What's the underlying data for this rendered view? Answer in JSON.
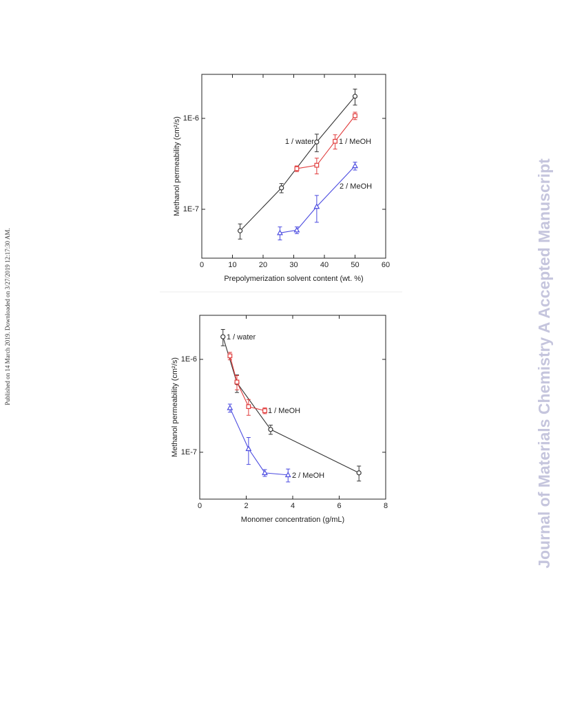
{
  "page": {
    "side_note": "Published on 14 March 2019. Downloaded on 3/27/2019 12:17:30 AM.",
    "watermark": "Journal of Materials Chemistry A Accepted Manuscript"
  },
  "chart_data": [
    {
      "type": "scatter",
      "xlabel": "Prepolymerization solvent content (wt. %)",
      "ylabel": "Methanol permeability (cm²/s)",
      "xlim": [
        0,
        60
      ],
      "xticks": [
        0,
        10,
        20,
        30,
        40,
        50,
        60
      ],
      "ylim": [
        2.9e-08,
        3.05e-06
      ],
      "log_scale": true,
      "yticks": [
        {
          "value": 1e-07,
          "label": "1E-7"
        },
        {
          "value": 1e-06,
          "label": "1E-6"
        }
      ],
      "series": [
        {
          "name": "1 / water",
          "color": "#333333",
          "marker": "circle",
          "x": [
            12.5,
            26,
            37.5,
            50
          ],
          "values": [
            5.8e-08,
            1.72e-07,
            5.5e-07,
            1.75e-06
          ],
          "errors": [
            1.1e-08,
            2e-08,
            1.2e-07,
            3.5e-07
          ]
        },
        {
          "name": "1 / MeOH",
          "color": "#e03a3a",
          "marker": "square",
          "x": [
            31,
            37.5,
            43.5,
            50
          ],
          "values": [
            2.8e-07,
            3.05e-07,
            5.6e-07,
            1.07e-06
          ],
          "errors": [
            2e-08,
            6e-08,
            1e-07,
            1e-07
          ]
        },
        {
          "name": "2 / MeOH",
          "color": "#4a4ae0",
          "marker": "triangle",
          "x": [
            25.5,
            31,
            37.5,
            50
          ],
          "values": [
            5.5e-08,
            5.9e-08,
            1.07e-07,
            3e-07
          ],
          "errors": [
            9e-09,
            5e-09,
            3.5e-08,
            3e-08
          ]
        }
      ]
    },
    {
      "type": "scatter",
      "xlabel": "Monomer concentration (g/mL)",
      "ylabel": "Methanol permeability (cm²/s)",
      "xlim": [
        0,
        8
      ],
      "xticks": [
        0,
        2,
        4,
        6,
        8
      ],
      "ylim": [
        3.13e-08,
        2.98e-06
      ],
      "log_scale": true,
      "yticks": [
        {
          "value": 1e-07,
          "label": "1E-7"
        },
        {
          "value": 1e-06,
          "label": "1E-6"
        }
      ],
      "series": [
        {
          "name": "1 / water",
          "color": "#333333",
          "marker": "circle",
          "x": [
            1.0,
            1.6,
            3.05,
            6.85
          ],
          "values": [
            1.75e-06,
            5.6e-07,
            1.76e-07,
            6e-08
          ],
          "errors": [
            3.5e-07,
            1.2e-07,
            2e-08,
            1.1e-08
          ]
        },
        {
          "name": "1 / MeOH",
          "color": "#e03a3a",
          "marker": "square",
          "x": [
            1.3,
            1.6,
            2.1,
            2.8
          ],
          "values": [
            1.09e-06,
            5.7e-07,
            3.1e-07,
            2.8e-07
          ],
          "errors": [
            1e-07,
            1e-07,
            6e-08,
            2e-08
          ]
        },
        {
          "name": "2 / MeOH",
          "color": "#4a4ae0",
          "marker": "triangle",
          "x": [
            1.3,
            2.1,
            2.8,
            3.8
          ],
          "values": [
            3e-07,
            1.09e-07,
            6e-08,
            5.7e-08
          ],
          "errors": [
            3e-08,
            3.5e-08,
            5e-09,
            9e-09
          ]
        }
      ]
    }
  ]
}
